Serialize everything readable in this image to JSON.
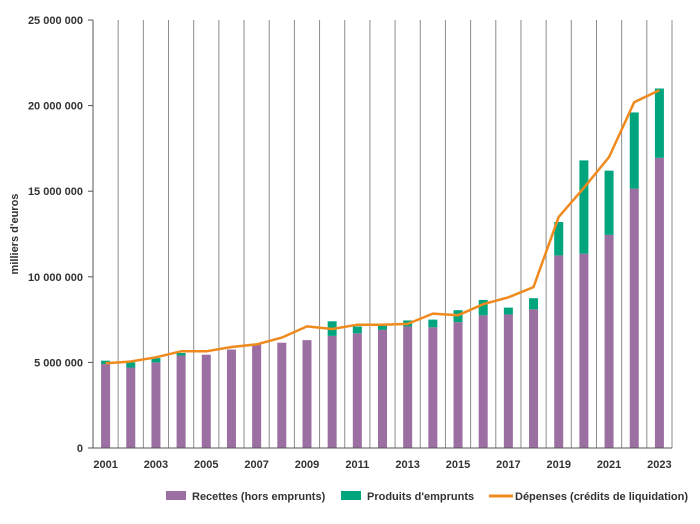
{
  "chart_data": {
    "type": "bar",
    "ylabel": "milliers d'euros",
    "ylim": [
      0,
      25000000
    ],
    "yticks": [
      0,
      5000000,
      10000000,
      15000000,
      20000000,
      25000000
    ],
    "ytick_labels": [
      "0",
      "5 000 000",
      "10 000 000",
      "15 000 000",
      "20 000 000",
      "25 000 000"
    ],
    "categories": [
      2001,
      2002,
      2003,
      2004,
      2005,
      2006,
      2007,
      2008,
      2009,
      2010,
      2011,
      2012,
      2013,
      2014,
      2015,
      2016,
      2017,
      2018,
      2019,
      2020,
      2021,
      2022,
      2023
    ],
    "xtick_labels": [
      "2001",
      "2003",
      "2005",
      "2007",
      "2009",
      "2011",
      "2013",
      "2015",
      "2017",
      "2019",
      "2021",
      "2023"
    ],
    "grid": "vertical",
    "legend_position": "bottom",
    "series": [
      {
        "name": "Recettes (hors emprunts)",
        "kind": "bar-stacked",
        "color": "#9b6fa1",
        "values": [
          4900000,
          4700000,
          5000000,
          5400000,
          5450000,
          5750000,
          6050000,
          6150000,
          6300000,
          6550000,
          6700000,
          6900000,
          7100000,
          7050000,
          7350000,
          7750000,
          7800000,
          8100000,
          11250000,
          11350000,
          12450000,
          15150000,
          16950000
        ]
      },
      {
        "name": "Produits d'emprunts",
        "kind": "bar-stacked",
        "color": "#00a57e",
        "values": [
          200000,
          300000,
          250000,
          150000,
          0,
          0,
          0,
          0,
          0,
          850000,
          400000,
          250000,
          350000,
          450000,
          700000,
          900000,
          400000,
          650000,
          1950000,
          5450000,
          3750000,
          4450000,
          4050000
        ]
      },
      {
        "name": "Dépenses (crédits de liquidation)",
        "kind": "line",
        "color": "#ef8a1e",
        "values": [
          4950000,
          5050000,
          5300000,
          5650000,
          5650000,
          5900000,
          6050000,
          6450000,
          7100000,
          6950000,
          7200000,
          7200000,
          7250000,
          7850000,
          7750000,
          8400000,
          8800000,
          9400000,
          13500000,
          15200000,
          17000000,
          20200000,
          20900000
        ]
      }
    ]
  }
}
